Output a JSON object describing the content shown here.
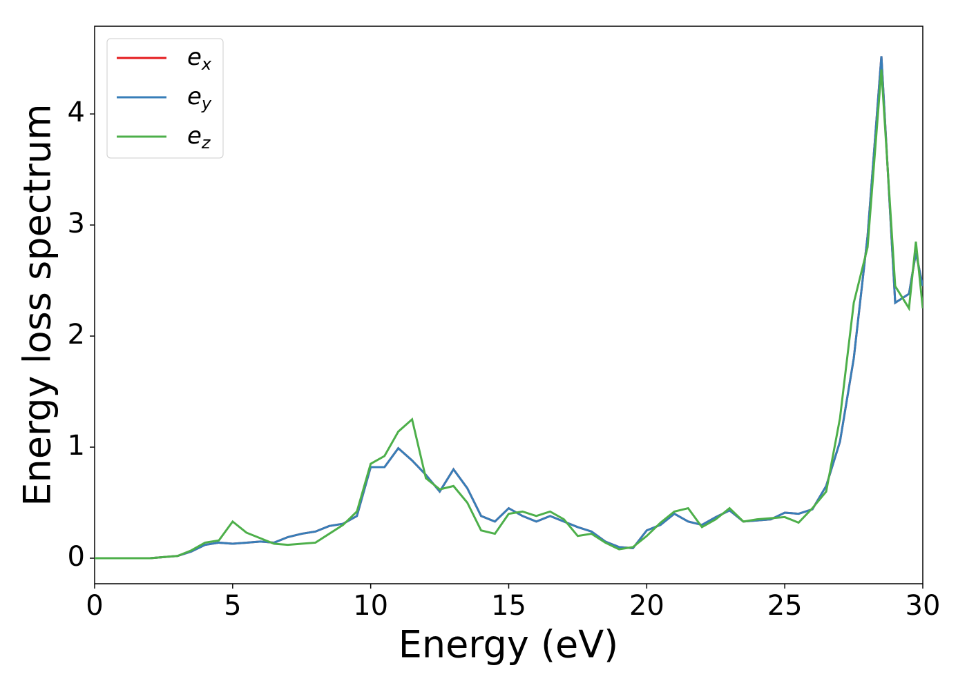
{
  "chart_data": {
    "type": "line",
    "xlabel": "Energy (eV)",
    "ylabel": "Energy loss spectrum",
    "x": [
      0,
      0.5,
      1,
      1.5,
      2,
      2.5,
      3,
      3.5,
      4,
      4.5,
      5,
      5.5,
      6,
      6.5,
      7,
      7.5,
      8,
      8.5,
      9,
      9.5,
      10,
      10.5,
      11,
      11.5,
      12,
      12.5,
      13,
      13.5,
      14,
      14.5,
      15,
      15.5,
      16,
      16.5,
      17,
      17.5,
      18,
      18.5,
      19,
      19.5,
      20,
      20.5,
      21,
      21.5,
      22,
      22.5,
      23,
      23.5,
      24,
      24.5,
      25,
      25.5,
      26,
      26.5,
      27,
      27.5,
      28,
      28.5,
      29,
      29.5,
      29.75,
      30
    ],
    "series": [
      {
        "name": "e_x",
        "color": "#e41a1c",
        "values": [
          0,
          0,
          0,
          0,
          0,
          0.01,
          0.02,
          0.06,
          0.12,
          0.14,
          0.13,
          0.14,
          0.15,
          0.14,
          0.19,
          0.22,
          0.24,
          0.29,
          0.31,
          0.38,
          0.82,
          0.82,
          0.99,
          0.88,
          0.75,
          0.6,
          0.8,
          0.63,
          0.38,
          0.33,
          0.45,
          0.38,
          0.33,
          0.38,
          0.33,
          0.28,
          0.24,
          0.15,
          0.1,
          0.09,
          0.25,
          0.3,
          0.4,
          0.33,
          0.3,
          0.37,
          0.43,
          0.33,
          0.34,
          0.35,
          0.41,
          0.4,
          0.44,
          0.65,
          1.05,
          1.8,
          2.9,
          4.52,
          2.3,
          2.38,
          2.75,
          2.45
        ]
      },
      {
        "name": "e_y",
        "color": "#377eb8",
        "values": [
          0,
          0,
          0,
          0,
          0,
          0.01,
          0.02,
          0.06,
          0.12,
          0.14,
          0.13,
          0.14,
          0.15,
          0.14,
          0.19,
          0.22,
          0.24,
          0.29,
          0.31,
          0.38,
          0.82,
          0.82,
          0.99,
          0.88,
          0.75,
          0.6,
          0.8,
          0.63,
          0.38,
          0.33,
          0.45,
          0.38,
          0.33,
          0.38,
          0.33,
          0.28,
          0.24,
          0.15,
          0.1,
          0.09,
          0.25,
          0.3,
          0.4,
          0.33,
          0.3,
          0.37,
          0.43,
          0.33,
          0.34,
          0.35,
          0.41,
          0.4,
          0.44,
          0.65,
          1.05,
          1.8,
          2.9,
          4.52,
          2.3,
          2.38,
          2.75,
          2.45
        ]
      },
      {
        "name": "e_z",
        "color": "#4daf4a",
        "values": [
          0,
          0,
          0,
          0,
          0,
          0.01,
          0.02,
          0.07,
          0.14,
          0.16,
          0.33,
          0.23,
          0.18,
          0.13,
          0.12,
          0.13,
          0.14,
          0.22,
          0.3,
          0.42,
          0.85,
          0.92,
          1.14,
          1.25,
          0.72,
          0.62,
          0.65,
          0.5,
          0.25,
          0.22,
          0.4,
          0.42,
          0.38,
          0.42,
          0.35,
          0.2,
          0.22,
          0.14,
          0.08,
          0.1,
          0.2,
          0.32,
          0.42,
          0.45,
          0.28,
          0.35,
          0.45,
          0.33,
          0.35,
          0.36,
          0.37,
          0.32,
          0.45,
          0.6,
          1.26,
          2.3,
          2.8,
          4.4,
          2.45,
          2.25,
          2.85,
          2.25
        ]
      }
    ],
    "xlim": [
      0,
      30
    ],
    "xticks": [
      0,
      5,
      10,
      15,
      20,
      25,
      30
    ],
    "ylim": [
      -0.23,
      4.79
    ],
    "yticks": [
      0,
      1,
      2,
      3,
      4
    ],
    "legend": "upper left",
    "grid": false
  }
}
